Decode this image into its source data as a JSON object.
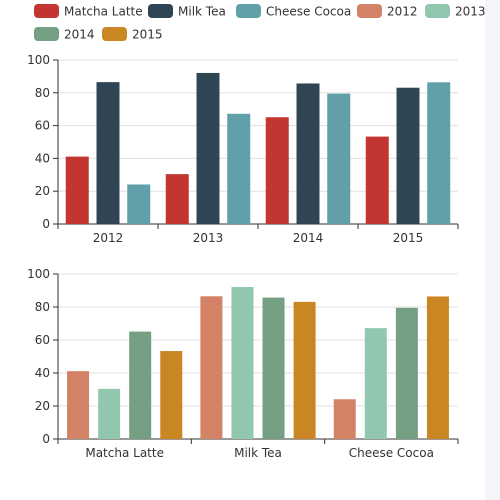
{
  "colors": {
    "Matcha Latte": "#c23531",
    "Milk Tea": "#2f4554",
    "Cheese Cocoa": "#61a0a8",
    "2012": "#d48265",
    "2013": "#91c7ae",
    "2014": "#749f83",
    "2015": "#ca8622"
  },
  "legend": {
    "items": [
      "Matcha Latte",
      "Milk Tea",
      "Cheese Cocoa",
      "2012",
      "2013",
      "2014",
      "2015"
    ],
    "placement": "top-left"
  },
  "chart_data": [
    {
      "type": "bar",
      "categories": [
        "2012",
        "2013",
        "2014",
        "2015"
      ],
      "series": [
        {
          "name": "Matcha Latte",
          "values": [
            41.1,
            30.4,
            65.1,
            53.3
          ]
        },
        {
          "name": "Milk Tea",
          "values": [
            86.5,
            92.1,
            85.7,
            83.1
          ]
        },
        {
          "name": "Cheese Cocoa",
          "values": [
            24.1,
            67.2,
            79.5,
            86.4
          ]
        }
      ],
      "ylim": [
        0,
        100
      ],
      "yticks": [
        0,
        20,
        40,
        60,
        80,
        100
      ],
      "grid": true
    },
    {
      "type": "bar",
      "categories": [
        "Matcha Latte",
        "Milk Tea",
        "Cheese Cocoa"
      ],
      "series": [
        {
          "name": "2012",
          "values": [
            41.1,
            86.5,
            24.1
          ]
        },
        {
          "name": "2013",
          "values": [
            30.4,
            92.1,
            67.2
          ]
        },
        {
          "name": "2014",
          "values": [
            65.1,
            85.7,
            79.5
          ]
        },
        {
          "name": "2015",
          "values": [
            53.3,
            83.1,
            86.4
          ]
        }
      ],
      "ylim": [
        0,
        100
      ],
      "yticks": [
        0,
        20,
        40,
        60,
        80,
        100
      ],
      "grid": true
    }
  ]
}
